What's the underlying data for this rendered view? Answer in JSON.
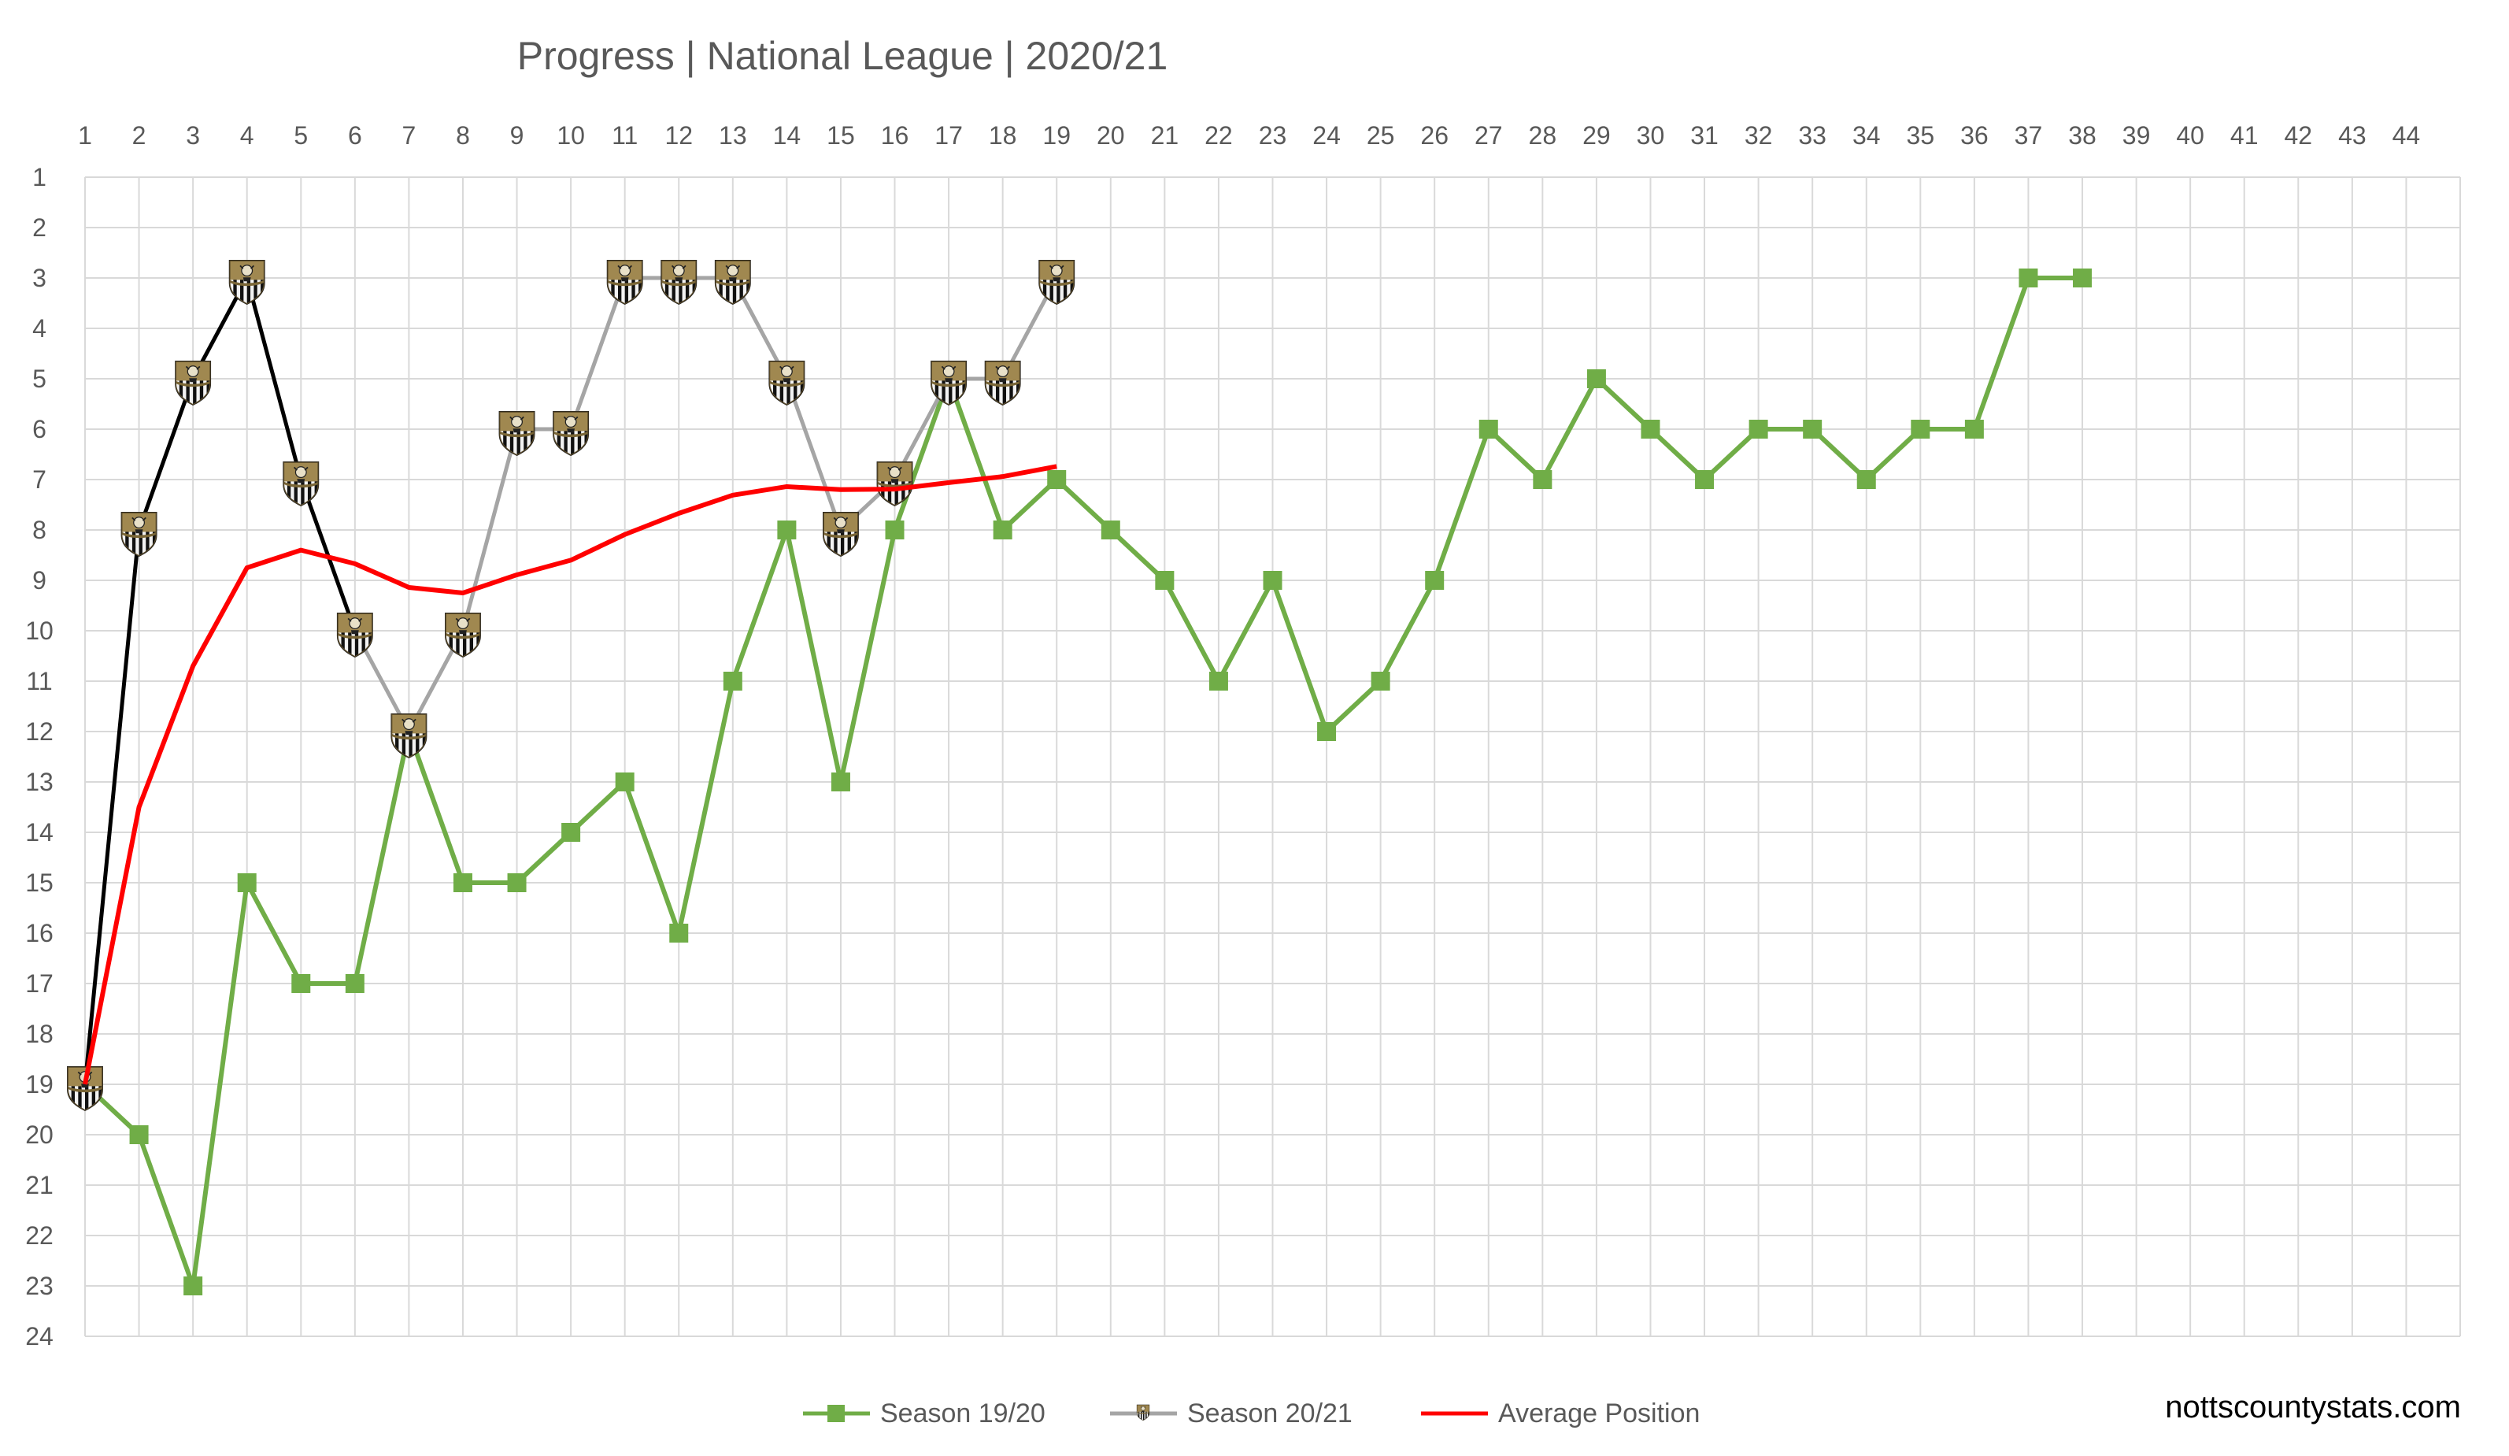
{
  "chart_data": {
    "type": "line",
    "title": "Progress | National League | 2020/21",
    "x_ticks": [
      1,
      2,
      3,
      4,
      5,
      6,
      7,
      8,
      9,
      10,
      11,
      12,
      13,
      14,
      15,
      16,
      17,
      18,
      19,
      20,
      21,
      22,
      23,
      24,
      25,
      26,
      27,
      28,
      29,
      30,
      31,
      32,
      33,
      34,
      35,
      36,
      37,
      38,
      39,
      40,
      41,
      42,
      43,
      44
    ],
    "y_ticks": [
      1,
      2,
      3,
      4,
      5,
      6,
      7,
      8,
      9,
      10,
      11,
      12,
      13,
      14,
      15,
      16,
      17,
      18,
      19,
      20,
      21,
      22,
      23,
      24
    ],
    "xlim": [
      1,
      44
    ],
    "ylim": [
      1,
      24
    ],
    "y_inverted": true,
    "grid": true,
    "legend_position": "bottom",
    "series": [
      {
        "name": "Season 19/20",
        "color": "#70ad47",
        "marker": "square",
        "x": [
          1,
          2,
          3,
          4,
          5,
          6,
          7,
          8,
          9,
          10,
          11,
          12,
          13,
          14,
          15,
          16,
          17,
          18,
          19,
          20,
          21,
          22,
          23,
          24,
          25,
          26,
          27,
          28,
          29,
          30,
          31,
          32,
          33,
          34,
          35,
          36,
          37,
          38
        ],
        "y": [
          19,
          20,
          23,
          15,
          17,
          17,
          12,
          15,
          15,
          14,
          13,
          16,
          11,
          8,
          13,
          8,
          5,
          8,
          7,
          8,
          9,
          11,
          9,
          12,
          11,
          9,
          6,
          7,
          5,
          6,
          7,
          6,
          6,
          7,
          6,
          6,
          3,
          3
        ]
      },
      {
        "name": "Season 20/21",
        "color": "#a5a5a5",
        "first_segments_color": "#000000",
        "marker": "crest-icon",
        "x": [
          1,
          2,
          3,
          4,
          5,
          6,
          7,
          8,
          9,
          10,
          11,
          12,
          13,
          14,
          15,
          16,
          17,
          18,
          19
        ],
        "y": [
          19,
          8,
          5,
          3,
          7,
          10,
          12,
          10,
          6,
          6,
          3,
          3,
          3,
          5,
          8,
          7,
          5,
          5,
          3
        ]
      },
      {
        "name": "Average Position",
        "color": "#ff0000",
        "marker": "none",
        "x": [
          1,
          2,
          3,
          4,
          5,
          6,
          7,
          8,
          9,
          10,
          11,
          12,
          13,
          14,
          15,
          16,
          17,
          18,
          19
        ],
        "y": [
          19,
          13.5,
          10.7,
          8.75,
          8.4,
          8.67,
          9.14,
          9.25,
          8.89,
          8.6,
          8.09,
          7.67,
          7.31,
          7.14,
          7.2,
          7.19,
          7.06,
          6.94,
          6.74
        ]
      }
    ]
  },
  "credit": "nottscountystats.com",
  "colors": {
    "grid": "#d9d9d9",
    "text": "#595959",
    "crest_gold": "#a08850",
    "crest_dark": "#2a2a2a"
  }
}
